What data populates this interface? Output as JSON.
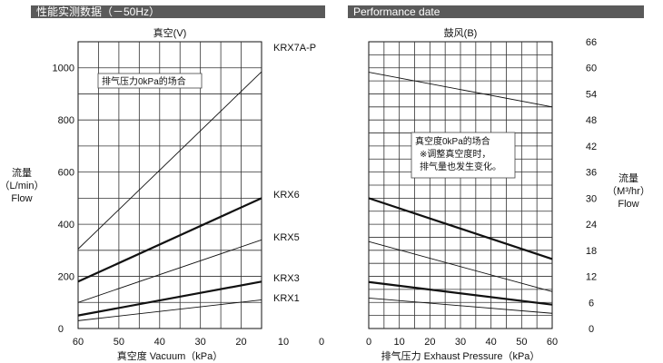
{
  "header": {
    "left_title": "性能实测数据（－50Hz）",
    "right_title": "Performance date"
  },
  "chart_data": [
    {
      "type": "line",
      "title": "真空(V)",
      "xlabel": "真空度 Vacuum（kPa）",
      "ylabel_lines": [
        "流量",
        "（L/min）",
        "Flow"
      ],
      "x_ticks": [
        60,
        50,
        40,
        30,
        20,
        10,
        0
      ],
      "y_ticks": [
        0,
        200,
        400,
        600,
        800,
        1000
      ],
      "xlim": [
        60,
        0
      ],
      "ylim": [
        0,
        1000
      ],
      "grid": true,
      "annotation": "排气压力0kPa的场合",
      "series": [
        {
          "name": "KRX7A-P",
          "x": [
            60,
            15
          ],
          "y": [
            305,
            985
          ],
          "weight": "thin"
        },
        {
          "name": "KRX6",
          "x": [
            60,
            15
          ],
          "y": [
            180,
            500
          ],
          "weight": "bold"
        },
        {
          "name": "KRX5",
          "x": [
            60,
            15
          ],
          "y": [
            100,
            340
          ],
          "weight": "thin"
        },
        {
          "name": "KRX3",
          "x": [
            60,
            15
          ],
          "y": [
            50,
            180
          ],
          "weight": "bold"
        },
        {
          "name": "KRX1",
          "x": [
            60,
            15
          ],
          "y": [
            30,
            110
          ],
          "weight": "thin"
        }
      ]
    },
    {
      "type": "line",
      "title": "鼓风(B)",
      "xlabel": "排气压力 Exhaust Pressure（kPa）",
      "ylabel_lines": [
        "流量",
        "（M³/hr）",
        "Flow"
      ],
      "x_ticks": [
        0,
        10,
        20,
        30,
        40,
        50,
        60
      ],
      "y_ticks": [
        0,
        6,
        12,
        18,
        24,
        30,
        36,
        42,
        48,
        54,
        60,
        66
      ],
      "xlim": [
        0,
        60
      ],
      "ylim": [
        0,
        66
      ],
      "grid": true,
      "annotation_lines": [
        "真空度0kPa的场合",
        "※调整真空度时，",
        "排气量也发生变化。"
      ],
      "series": [
        {
          "x": [
            0,
            60
          ],
          "y": [
            59,
            51
          ],
          "weight": "thin"
        },
        {
          "x": [
            0,
            60
          ],
          "y": [
            30,
            16
          ],
          "weight": "bold"
        },
        {
          "x": [
            0,
            60
          ],
          "y": [
            20,
            8.5
          ],
          "weight": "thin"
        },
        {
          "x": [
            0,
            60
          ],
          "y": [
            10.7,
            5.5
          ],
          "weight": "bold"
        },
        {
          "x": [
            0,
            60
          ],
          "y": [
            7,
            3.5
          ],
          "weight": "thin"
        }
      ]
    }
  ]
}
